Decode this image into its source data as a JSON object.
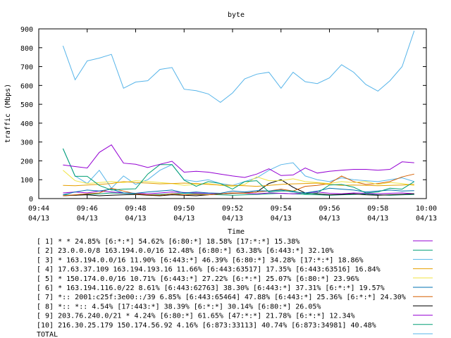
{
  "chart_data": {
    "type": "line",
    "title": "byte",
    "xlabel": "Time",
    "ylabel": "traffic (Mbps)",
    "xlim": [
      0,
      16
    ],
    "ylim": [
      0,
      900
    ],
    "yticks": [
      0,
      100,
      200,
      300,
      400,
      500,
      600,
      700,
      800,
      900
    ],
    "xticks": [
      {
        "v": 0,
        "time": "09:44",
        "date": "04/13"
      },
      {
        "v": 2,
        "time": "09:46",
        "date": "04/13"
      },
      {
        "v": 4,
        "time": "09:48",
        "date": "04/13"
      },
      {
        "v": 6,
        "time": "09:50",
        "date": "04/13"
      },
      {
        "v": 8,
        "time": "09:52",
        "date": "04/13"
      },
      {
        "v": 10,
        "time": "09:54",
        "date": "04/13"
      },
      {
        "v": 12,
        "time": "09:56",
        "date": "04/13"
      },
      {
        "v": 14,
        "time": "09:58",
        "date": "04/13"
      },
      {
        "v": 16,
        "time": "10:00",
        "date": "04/13"
      }
    ],
    "x": [
      1,
      1.5,
      2,
      2.5,
      3,
      3.5,
      4,
      4.5,
      5,
      5.5,
      6,
      6.5,
      7,
      7.5,
      8,
      8.5,
      9,
      9.5,
      10,
      10.5,
      11,
      11.5,
      12,
      12.5,
      13,
      13.5,
      14,
      14.5,
      15,
      15.5
    ],
    "legend_position": "bottom",
    "series": [
      {
        "name": "[ 1] * * 24.85%  [6:*:*] 54.62% [6:80:*] 18.58% [17:*:*] 15.38%",
        "color": "#9400d3",
        "values": [
          178,
          170,
          162,
          245,
          285,
          188,
          182,
          165,
          182,
          198,
          140,
          145,
          140,
          130,
          120,
          112,
          130,
          158,
          122,
          125,
          162,
          135,
          145,
          150,
          155,
          155,
          150,
          155,
          195,
          190
        ]
      },
      {
        "name": "[ 2] 23.0.0.0/8 163.194.0.0/16 12.48%  [6:80:*] 63.38% [6:443:*] 32.10%",
        "color": "#009e73",
        "values": [
          265,
          118,
          118,
          70,
          45,
          50,
          52,
          130,
          180,
          180,
          98,
          65,
          90,
          80,
          50,
          90,
          95,
          35,
          40,
          40,
          25,
          30,
          72,
          75,
          60,
          30,
          35,
          55,
          50,
          90
        ]
      },
      {
        "name": "[ 3] * 163.194.0.0/16 11.90%  [6:443:*] 46.39% [6:80:*] 34.28% [17:*:*] 18.86%",
        "color": "#56b4e9",
        "values": [
          810,
          630,
          730,
          745,
          765,
          585,
          618,
          625,
          685,
          695,
          580,
          572,
          555,
          510,
          560,
          635,
          660,
          670,
          585,
          670,
          620,
          610,
          640,
          710,
          670,
          605,
          570,
          625,
          700,
          890
        ]
      },
      {
        "name": "[ 4] 17.63.37.109 163.194.193.16 11.66%  [6:443:63517] 17.35% [6:443:63516] 16.84%",
        "color": "#e69f00",
        "values": [
          70,
          68,
          72,
          75,
          80,
          90,
          85,
          82,
          78,
          80,
          82,
          80,
          75,
          72,
          70,
          68,
          65,
          70,
          75,
          78,
          80,
          82,
          75,
          70,
          72,
          70,
          68,
          70,
          72,
          75
        ]
      },
      {
        "name": "[ 5] * 150.174.0.0/16 10.71%  [6:443:*] 27.22% [6:*:*] 25.07% [6:80:*] 23.96%",
        "color": "#f0e442",
        "values": [
          150,
          95,
          80,
          85,
          90,
          85,
          95,
          90,
          85,
          80,
          70,
          75,
          80,
          70,
          65,
          75,
          115,
          95,
          95,
          105,
          90,
          85,
          80,
          90,
          85,
          90,
          75,
          85,
          80,
          70
        ]
      },
      {
        "name": "[ 6] * 163.194.116.0/22 8.61%  [6:443:62763] 38.30% [6:443:*] 37.31% [6:*:*] 19.57%",
        "color": "#0072b2",
        "values": [
          20,
          35,
          45,
          40,
          50,
          30,
          28,
          35,
          40,
          45,
          30,
          35,
          30,
          28,
          40,
          35,
          42,
          40,
          45,
          35,
          30,
          40,
          55,
          50,
          45,
          35,
          40,
          45,
          40,
          42
        ]
      },
      {
        "name": "[ 7] *:: 2001:c25f:3e00::/39 6.85%  [6:443:65464] 47.88% [6:443:*] 25.36% [6:*:*] 24.30%",
        "color": "#d55e00",
        "values": [
          15,
          20,
          25,
          30,
          55,
          40,
          25,
          20,
          18,
          25,
          20,
          22,
          20,
          25,
          30,
          28,
          35,
          40,
          50,
          40,
          65,
          70,
          80,
          120,
          90,
          75,
          80,
          90,
          115,
          130
        ]
      },
      {
        "name": "[ 8] *:: *:: 4.54%  [17:443:*] 38.39% [6:*:*] 30.14% [6:80:*] 26.05%",
        "color": "#000000",
        "values": [
          15,
          18,
          20,
          15,
          18,
          20,
          22,
          18,
          15,
          20,
          18,
          15,
          20,
          25,
          28,
          30,
          35,
          80,
          100,
          60,
          30,
          25,
          20,
          22,
          25,
          20,
          18,
          20,
          22,
          25
        ]
      },
      {
        "name": "[ 9] 203.76.240.0/21 * 4.24%  [6:80:*] 61.65% [47:*:*] 21.78% [6:*:*] 12.34%",
        "color": "#9400d3",
        "values": [
          30,
          35,
          30,
          40,
          35,
          30,
          28,
          25,
          30,
          35,
          32,
          30,
          28,
          25,
          30,
          28,
          25,
          30,
          28,
          25,
          30,
          35,
          28,
          25,
          30,
          28,
          25,
          28,
          30,
          25
        ]
      },
      {
        "name": "[10] 216.30.25.179 150.174.56.92 4.16%  [6:873:33113] 40.74% [6:873:34981] 40.48%",
        "color": "#009e73",
        "values": [
          20,
          18,
          22,
          25,
          30,
          28,
          25,
          20,
          22,
          25,
          28,
          25,
          22,
          20,
          18,
          20,
          22,
          25,
          28,
          25,
          22,
          20,
          18,
          20,
          22,
          25,
          20,
          18,
          20,
          22
        ]
      },
      {
        "name": "TOTAL",
        "color": "#56b4e9",
        "values": [
          265,
          120,
          80,
          150,
          55,
          120,
          75,
          100,
          150,
          180,
          100,
          90,
          100,
          80,
          70,
          90,
          110,
          150,
          180,
          190,
          120,
          100,
          90,
          110,
          100,
          95,
          90,
          100,
          110,
          90
        ]
      }
    ]
  }
}
